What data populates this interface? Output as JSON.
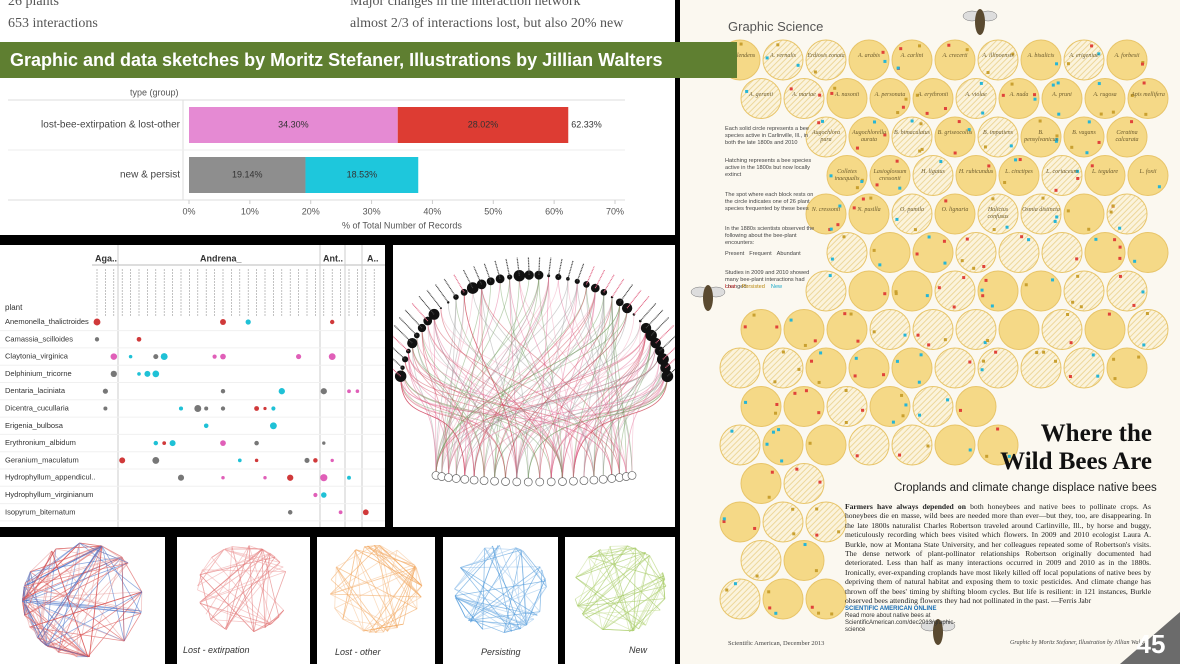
{
  "slide": {
    "banner": "Graphic and data sketches by Moritz Stefaner, Illustrations by Jillian Walters",
    "page_number": "45"
  },
  "summary": {
    "counts": [
      "26 plants",
      "653 interactions"
    ],
    "notes": [
      "Major changes in the interaction network",
      "almost 2/3 of interactions lost, but also 20% new"
    ]
  },
  "bar_chart": {
    "type": "bar",
    "orientation": "horizontal",
    "stacked": true,
    "group_label": "type (group)",
    "categories": [
      "lost-bee-extirpation & lost-other",
      "new & persist"
    ],
    "series": [
      {
        "colors": [
          "#e58ad3",
          "#8e8e8e"
        ],
        "values": [
          34.3,
          19.14
        ],
        "value_labels": [
          "34.30%",
          "19.14%"
        ]
      },
      {
        "colors": [
          "#dd3c33",
          "#1ec7dc"
        ],
        "values": [
          28.02,
          18.53
        ],
        "value_labels": [
          "28.02%",
          "18.53%"
        ]
      }
    ],
    "total_labels": [
      "62.33%"
    ],
    "xlim": [
      0,
      70
    ],
    "xticks": [
      {
        "value": 0,
        "label": "0%"
      },
      {
        "value": 10,
        "label": "10%"
      },
      {
        "value": 20,
        "label": "20%"
      },
      {
        "value": 30,
        "label": "30%"
      },
      {
        "value": 40,
        "label": "40%"
      },
      {
        "value": 50,
        "label": "50%"
      },
      {
        "value": 60,
        "label": "60%"
      },
      {
        "value": 70,
        "label": "70%"
      }
    ],
    "xlabel": "% of Total Number of Records"
  },
  "matrix": {
    "row_header": "plant",
    "column_groups": [
      "Aga..",
      "Andrena_",
      "Ant..",
      "A.."
    ],
    "rows": [
      "Anemonella_thalictroides",
      "Camassia_scilloides",
      "Claytonia_virginica",
      "Delphinium_tricorne",
      "Dentaria_laciniata",
      "Dicentra_cucullaria",
      "Erigenia_bulbosa",
      "Erythronium_albidum",
      "Geranium_maculatum",
      "Hydrophyllum_appendicul..",
      "Hydrophyllum_virginianum",
      "Isopyrum_biternatum"
    ]
  },
  "thumbnails": {
    "captions": [
      "Lost - extirpation",
      "Lost - other",
      "Persisting",
      "New"
    ]
  },
  "magazine": {
    "section": "Graphic Science",
    "title_lines": [
      "Where the",
      "Wild Bees Are"
    ],
    "subtitle": "Croplands and climate change displace native bees",
    "notes": [
      "Each solid circle represents a bee species active in Carlinville, Ill., in both the late 1800s and 2010",
      "Hatching represents a bee species active in the 1800s but now locally extinct",
      "The spot where each block rests on the circle indicates one of 26 plant species frequented by these bees",
      "In the 1880s scientists observed the following about the bee-plant encounters:",
      "Studies in 2009 and 2010 showed many bee-plant interactions had changed:"
    ],
    "frequency_key": [
      "Present",
      "Frequent",
      "Abundant"
    ],
    "change_key": [
      "Lost",
      "Persisted",
      "New"
    ],
    "species": [
      "A. splendens",
      "A. vernalis",
      "Erdiosis zonata",
      "A. arabis",
      "A. carlini",
      "A. crecerti",
      "A. illinoensis",
      "A. bisalicis",
      "A. erigeniae",
      "A. forbesii",
      "A. geranii",
      "A. mariae",
      "A. nasonii",
      "A. personata",
      "A. erythronii",
      "A. violae",
      "A. nuda",
      "A. pruni",
      "A. rugosa",
      "Apis mellifera",
      "Augochlora pura",
      "Augochlorella aurata",
      "B. bimaculatus",
      "B. griseocollis",
      "B. impatiens",
      "B. pensylvanicus",
      "B. vagans",
      "Ceratina calcarata",
      "Colletes inaequalis",
      "Lasioglossum cressonii",
      "H. ligatus",
      "H. rubicundus",
      "L. cinctipes",
      "L. coriaceum",
      "L. tegulare",
      "L. foxii",
      "N. cressonii",
      "N. pusilla",
      "O. pumila",
      "O. lignaria",
      "Halictus confusus",
      "Osmia distincta"
    ],
    "body_lead": "Farmers have always depended on",
    "body": "both honeybees and native bees to pollinate crops. As honeybees die en masse, wild bees are needed more than ever—but they, too, are disappearing. In the late 1800s naturalist Charles Robertson traveled around Carlinville, Ill., by horse and buggy, meticulously recording which bees visited which flowers. In 2009 and 2010 ecologist Laura A. Burkle, now at Montana State University, and her colleagues repeated some of Robertson's visits. The dense network of plant-pollinator relationships Robertson originally documented had deteriorated. Less than half as many interactions occurred in 2009 and 2010 as in the 1880s. Ironically, ever-expanding croplands have most likely killed off local populations of native bees by depriving them of natural habitat and exposing them to toxic pesticides. And climate change has thrown off the bees' timing by shifting bloom cycles. But life is resilient: in 121 instances, Burkle observed bees attending flowers they had not pollinated in the past. —Ferris Jabr",
    "online_head": "SCIENTIFIC AMERICAN ONLINE",
    "online_text": "Read more about native bees at ScientificAmerican.com/dec2013/graphic-science",
    "footer": "Scientific American, December 2013",
    "credit": "Graphic by Moritz Stefaner, Illustration by Jillian Walters"
  }
}
